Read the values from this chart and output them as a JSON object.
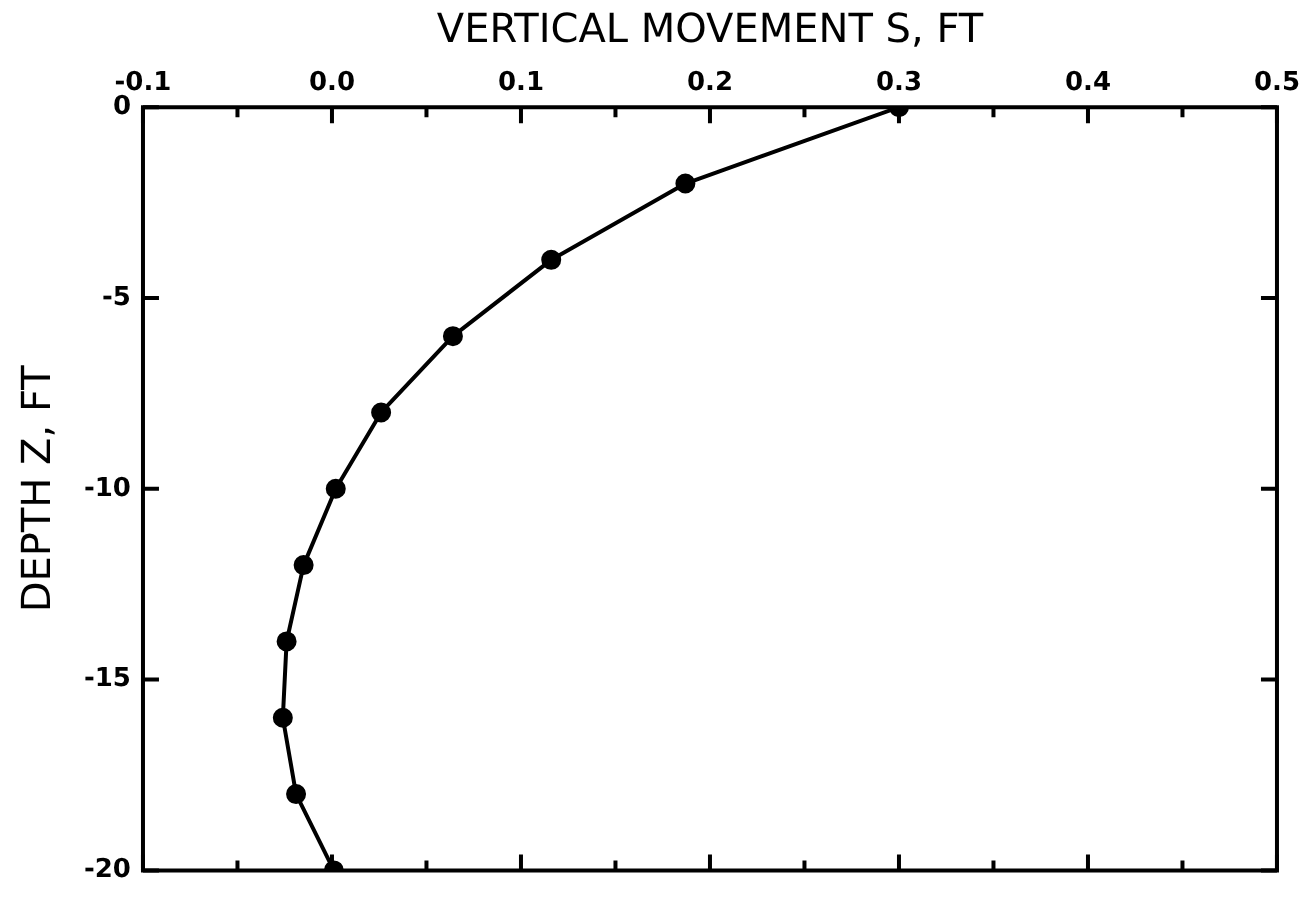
{
  "chart_data": {
    "type": "line",
    "xlabel": "VERTICAL MOVEMENT S, FT",
    "ylabel": "DEPTH Z, FT",
    "x": [
      0.3,
      0.187,
      0.116,
      0.064,
      0.026,
      0.002,
      -0.015,
      -0.024,
      -0.026,
      -0.019,
      0.001
    ],
    "series": [
      {
        "color": "#000000",
        "values": [
          0,
          -2,
          -4,
          -6,
          -8,
          -10,
          -12,
          -14,
          -16,
          -18,
          -20
        ]
      }
    ],
    "xlim": [
      -0.1,
      0.5
    ],
    "xticks": [
      {
        "value": -0.1,
        "label": "-0.1"
      },
      {
        "value": -0.05,
        "label": null
      },
      {
        "value": 0,
        "label": "0.0"
      },
      {
        "value": 0.05,
        "label": null
      },
      {
        "value": 0.1,
        "label": "0.1"
      },
      {
        "value": 0.15,
        "label": null
      },
      {
        "value": 0.2,
        "label": "0.2"
      },
      {
        "value": 0.25,
        "label": null
      },
      {
        "value": 0.3,
        "label": "0.3"
      },
      {
        "value": 0.35,
        "label": null
      },
      {
        "value": 0.4,
        "label": "0.4"
      },
      {
        "value": 0.45,
        "label": null
      },
      {
        "value": 0.5,
        "label": "0.5"
      }
    ],
    "ylim": [
      -20,
      0
    ],
    "yticks": [
      -20,
      -15,
      -10,
      -5,
      0
    ],
    "grid": false,
    "legend": false,
    "marker": "circle",
    "line_style": "solid"
  }
}
